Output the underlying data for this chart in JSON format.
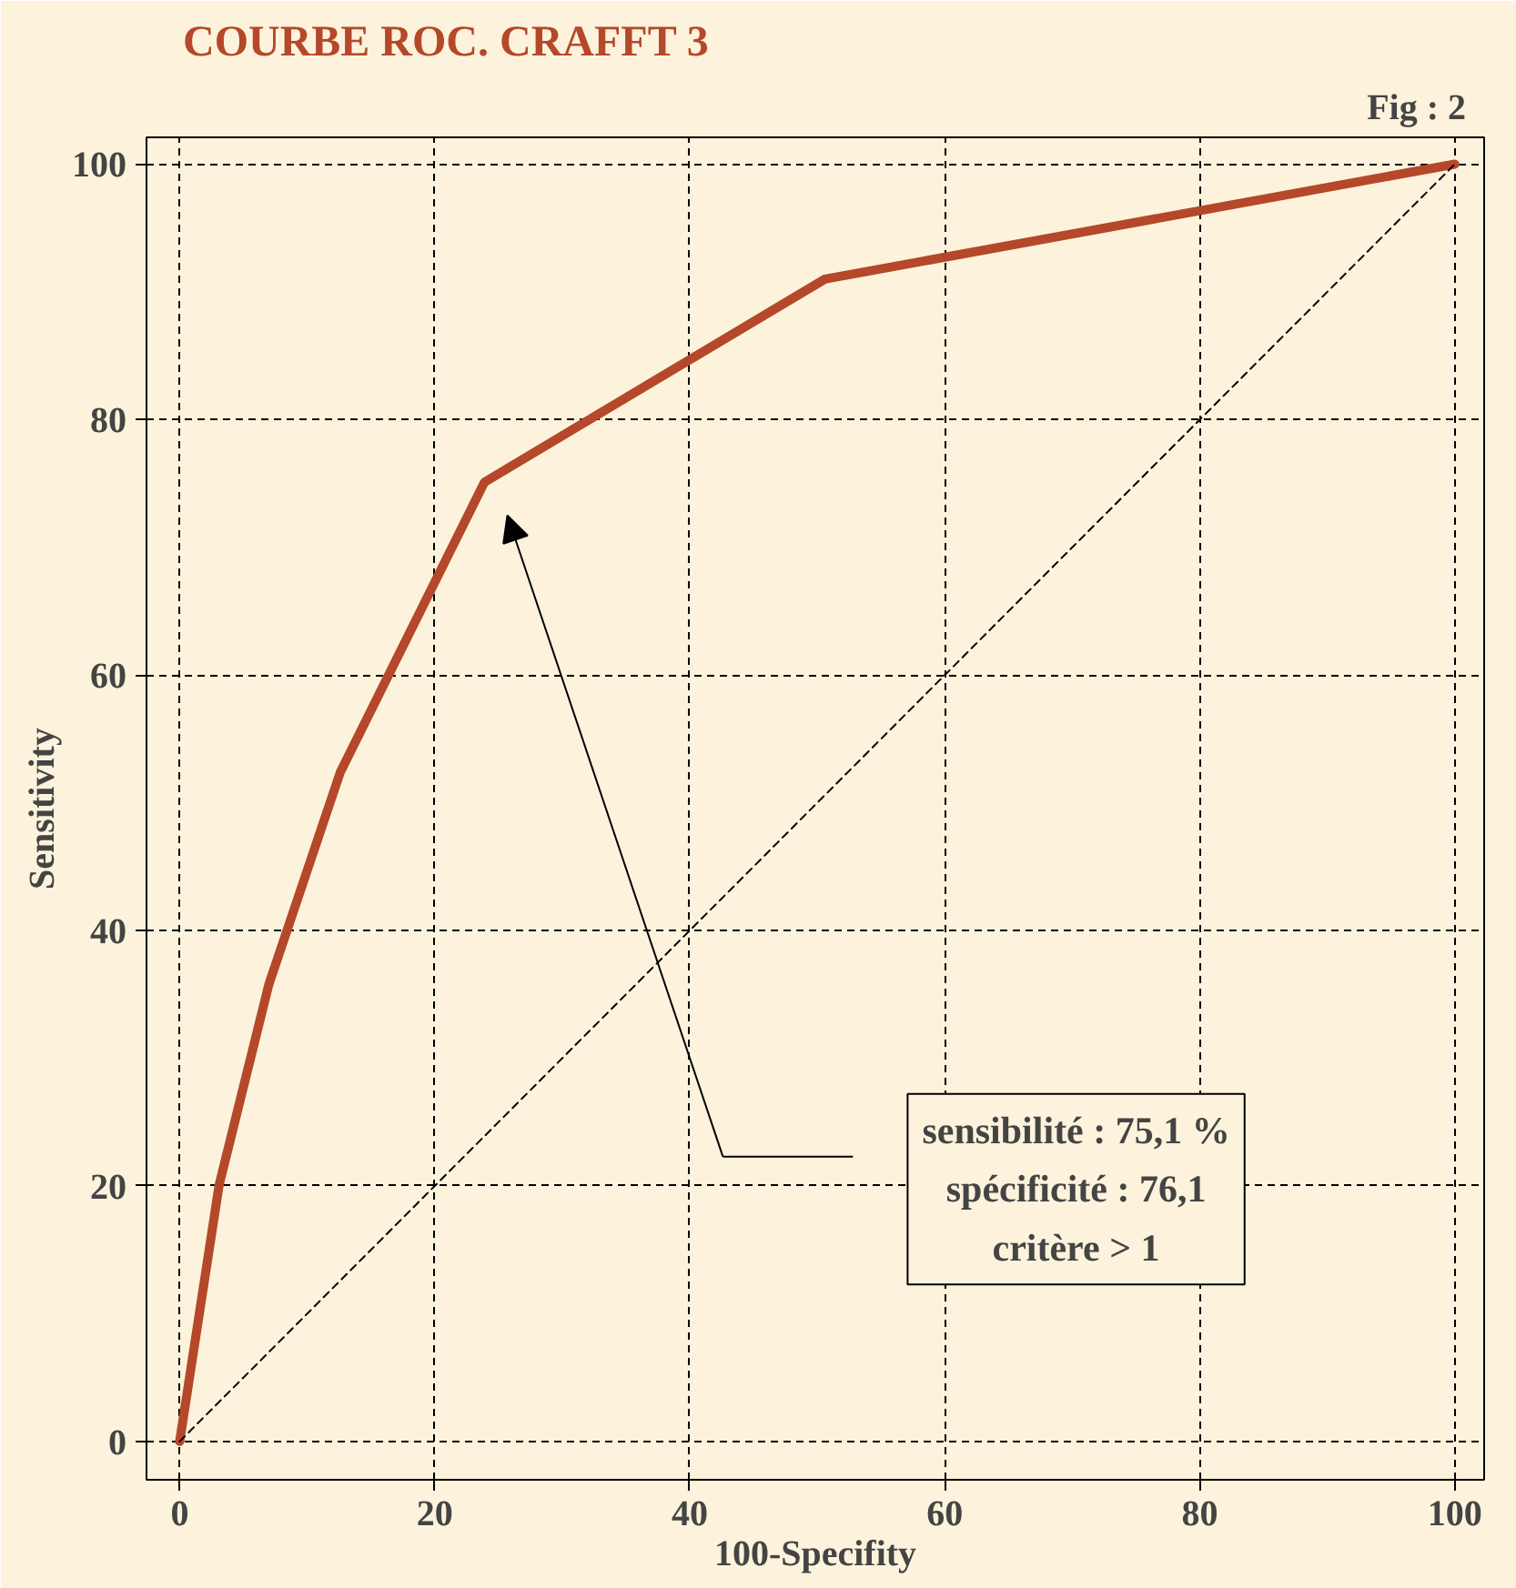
{
  "chart_data": {
    "type": "line",
    "title": "COURBE ROC. CRAFFT 3",
    "subtitle": "Fig : 2",
    "xlabel": "100-Specifity",
    "ylabel": "Sensitivity",
    "xlim": [
      -2.6,
      102.3
    ],
    "ylim": [
      -3,
      102.1
    ],
    "xticks": [
      0,
      20,
      40,
      60,
      80,
      100
    ],
    "yticks": [
      0,
      20,
      40,
      60,
      80,
      100
    ],
    "grid": true,
    "series": [
      {
        "color": "#b5482a",
        "x": [
          0,
          3.1,
          7,
          12.6,
          23.9,
          50.6,
          100
        ],
        "values": [
          0,
          20.1,
          35.8,
          52.4,
          75.1,
          91,
          100
        ],
        "line_style": "solid"
      },
      {
        "color": "#000000",
        "x": [
          0,
          100
        ],
        "values": [
          0,
          100
        ],
        "line_style": "dashed"
      }
    ],
    "annotations": [
      "sensibilité : 75,1 %\nspécificité : 76,1\ncritère > 1"
    ]
  }
}
